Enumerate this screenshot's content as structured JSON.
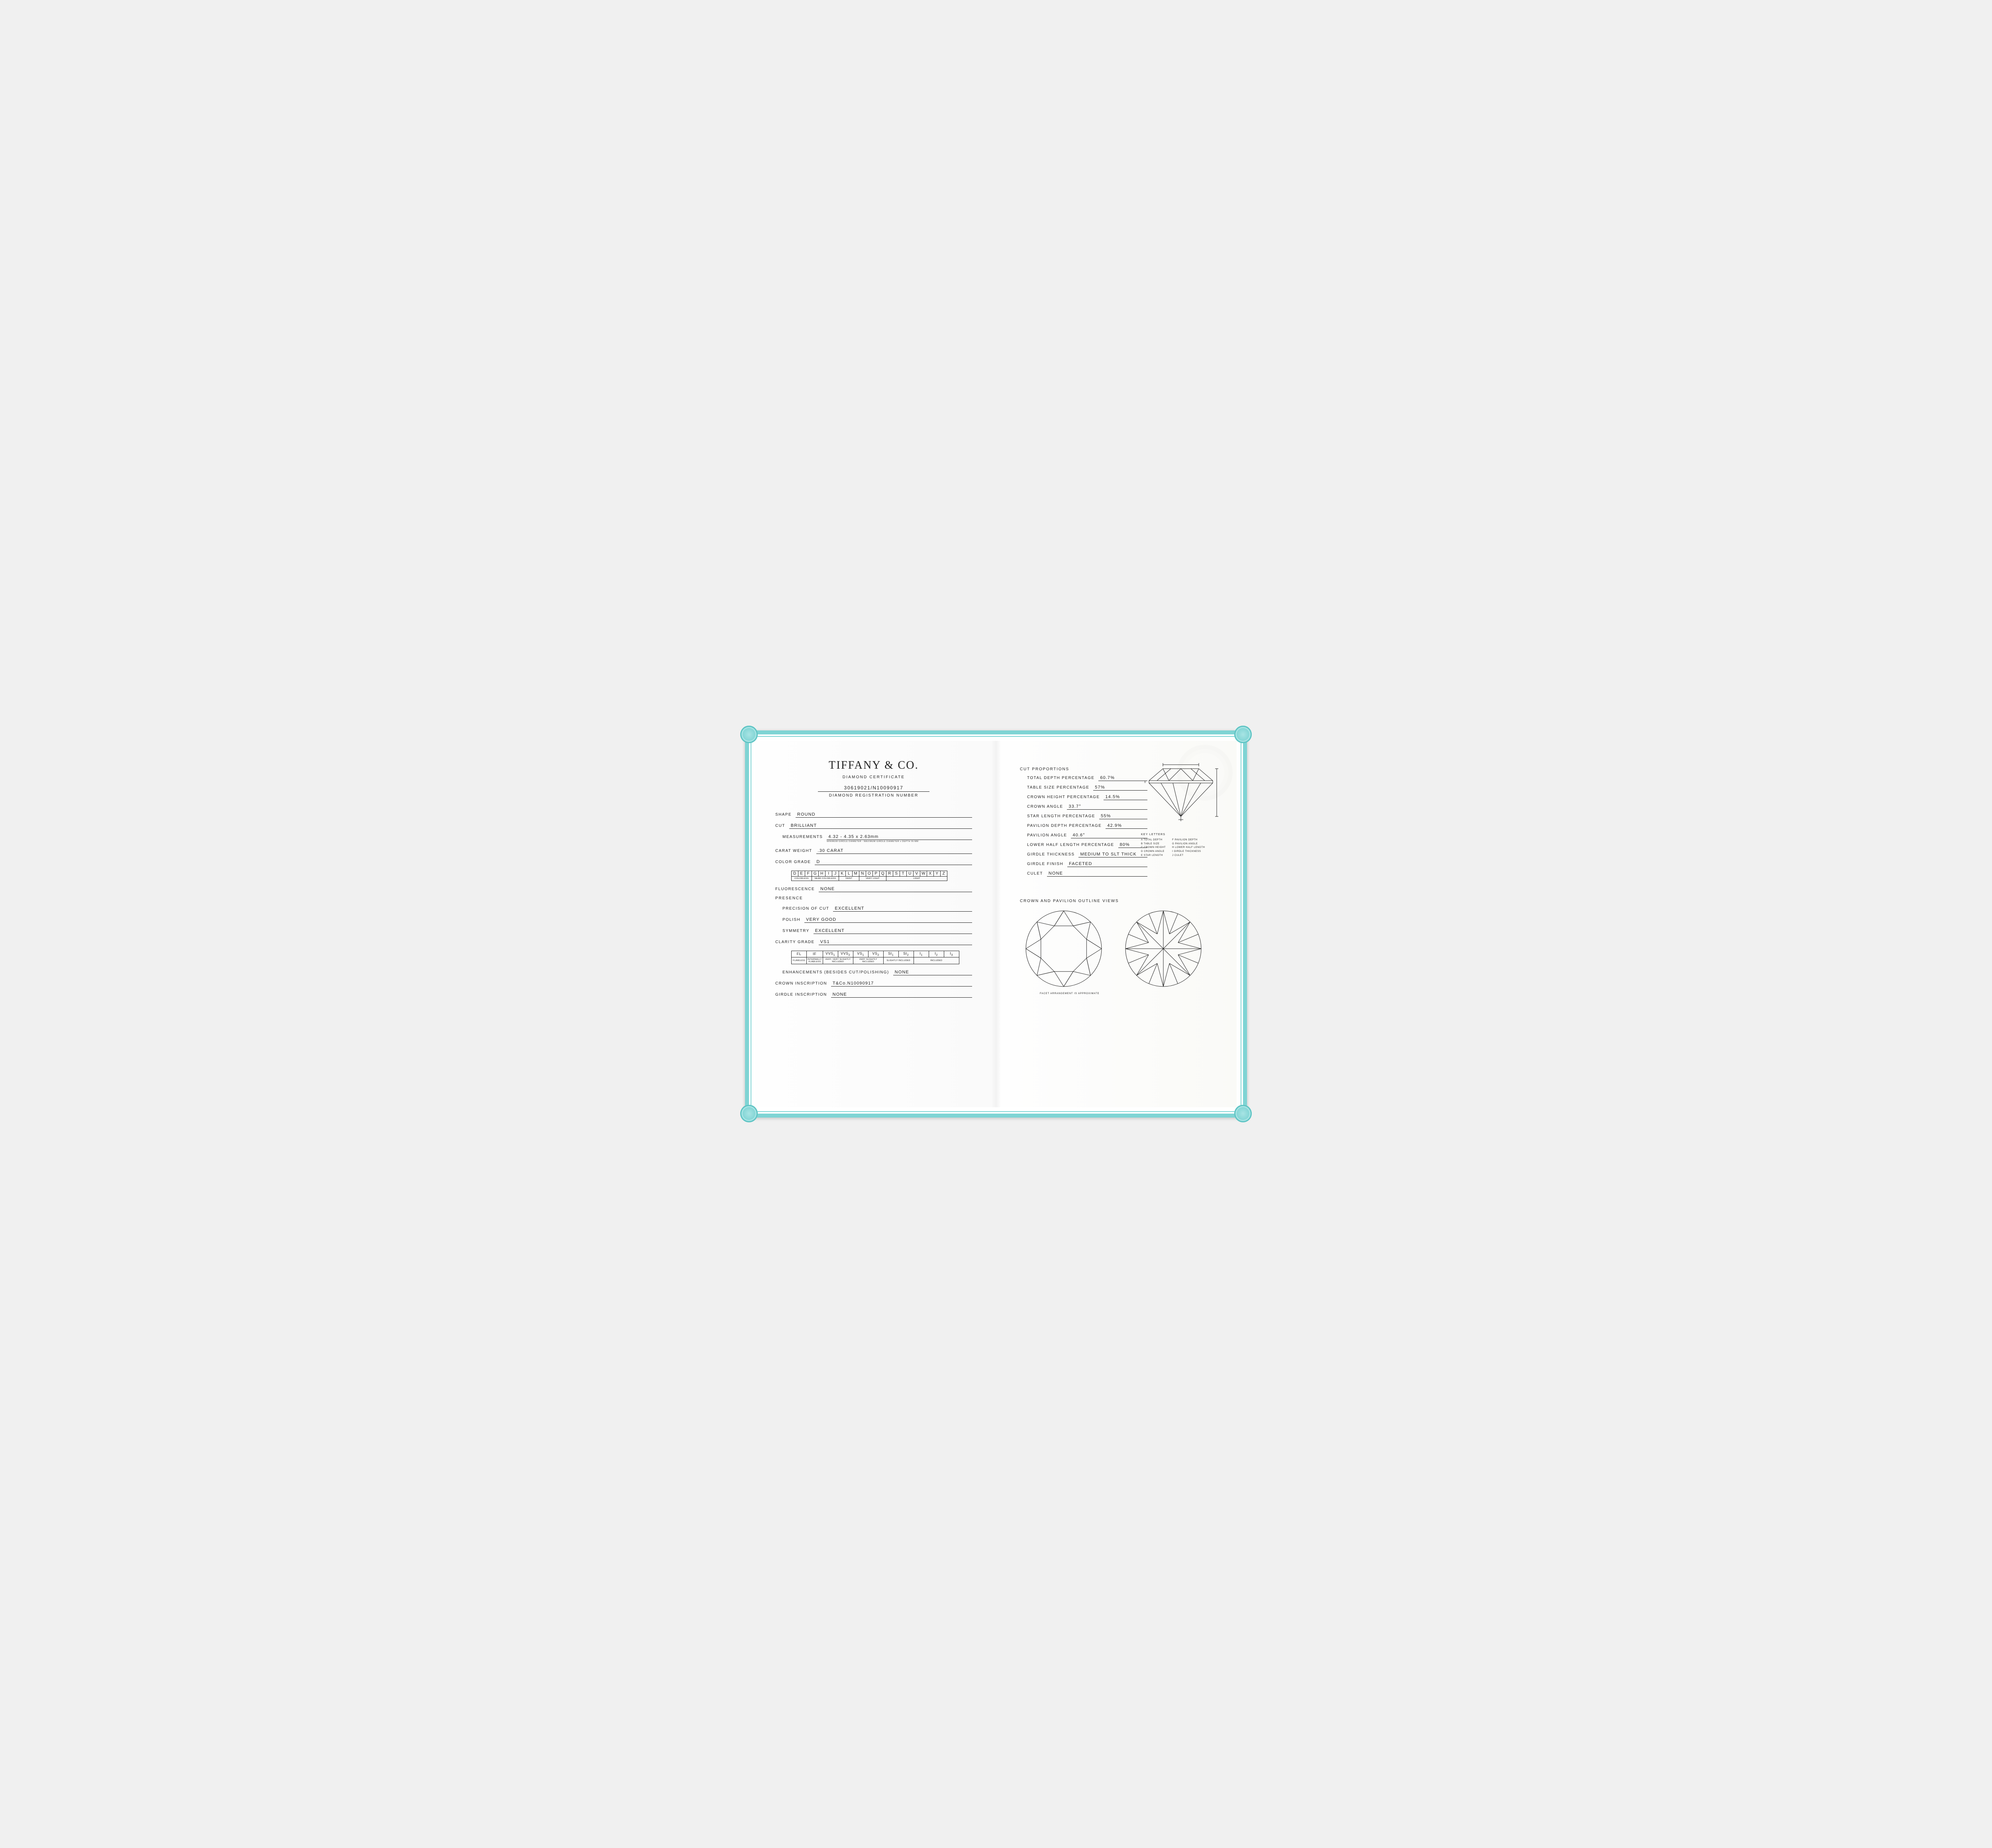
{
  "border_color": "#7fd4d4",
  "text_color": "#222222",
  "brand": "TIFFANY & CO.",
  "subtitle": "DIAMOND CERTIFICATE",
  "registration_number": "30619021/N10090917",
  "registration_label": "DIAMOND REGISTRATION NUMBER",
  "left": {
    "shape": {
      "label": "SHAPE",
      "value": "ROUND"
    },
    "cut": {
      "label": "CUT",
      "value": "BRILLIANT"
    },
    "measurements": {
      "label": "MEASUREMENTS",
      "value": "4.32 - 4.35 x 2.63mm",
      "note": "MINIMUM GIRDLE DIAMETER - MAXIMUM GIRDLE DIAMETER x DEPTH IN MM"
    },
    "carat": {
      "label": "CARAT WEIGHT",
      "value": ".30 CARAT"
    },
    "color_grade": {
      "label": "COLOR GRADE",
      "value": "D"
    },
    "color_scale": {
      "letters": [
        "D",
        "E",
        "F",
        "G",
        "H",
        "I",
        "J",
        "K",
        "L",
        "M",
        "N",
        "O",
        "P",
        "Q",
        "R",
        "S",
        "T",
        "U",
        "V",
        "W",
        "X",
        "Y",
        "Z"
      ],
      "groups": [
        {
          "label": "COLORLESS",
          "span": 3
        },
        {
          "label": "NEAR COLORLESS",
          "span": 4
        },
        {
          "label": "FAINT",
          "span": 3
        },
        {
          "label": "VERY LIGHT",
          "span": 4
        },
        {
          "label": "LIGHT",
          "span": 9
        }
      ]
    },
    "fluorescence": {
      "label": "FLUORESCENCE",
      "value": "NONE"
    },
    "presence": {
      "heading": "PRESENCE",
      "precision": {
        "label": "PRECISION OF CUT",
        "value": "EXCELLENT"
      },
      "polish": {
        "label": "POLISH",
        "value": "VERY GOOD"
      },
      "symmetry": {
        "label": "SYMMETRY",
        "value": "EXCELLENT"
      }
    },
    "clarity_grade": {
      "label": "CLARITY GRADE",
      "value": "VS1"
    },
    "clarity_scale": {
      "grades_html": [
        "FL",
        "IF",
        "VVS₁",
        "VVS₂",
        "VS₁",
        "VS₂",
        "SI₁",
        "SI₂",
        "I₁",
        "I₂",
        "I₃"
      ],
      "groups": [
        {
          "label": "FLAWLESS",
          "span": 1
        },
        {
          "label": "INTERNALLY FLAWLESS",
          "span": 1
        },
        {
          "label": "VERY, VERY SLIGHTLY INCLUDED",
          "span": 2
        },
        {
          "label": "VERY SLIGHTLY INCLUDED",
          "span": 2
        },
        {
          "label": "SLIGHTLY INCLUDED",
          "span": 2
        },
        {
          "label": "INCLUDED",
          "span": 3
        }
      ]
    },
    "enhancements": {
      "label": "ENHANCEMENTS (BESIDES CUT/POLISHING)",
      "value": "NONE"
    },
    "crown_inscription": {
      "label": "CROWN INSCRIPTION",
      "value": "T&Co.N10090917"
    },
    "girdle_inscription": {
      "label": "GIRDLE INSCRIPTION",
      "value": "NONE"
    }
  },
  "right": {
    "heading": "CUT PROPORTIONS",
    "rows": [
      {
        "label": "TOTAL DEPTH PERCENTAGE",
        "value": "60.7%"
      },
      {
        "label": "TABLE SIZE PERCENTAGE",
        "value": "57%"
      },
      {
        "label": "CROWN HEIGHT PERCENTAGE",
        "value": "14.5%"
      },
      {
        "label": "CROWN ANGLE",
        "value": "33.7°"
      },
      {
        "label": "STAR LENGTH PERCENTAGE",
        "value": "55%"
      },
      {
        "label": "PAVILION DEPTH PERCENTAGE",
        "value": "42.9%"
      },
      {
        "label": "PAVILION ANGLE",
        "value": "40.6°"
      },
      {
        "label": "LOWER HALF LENGTH PERCENTAGE",
        "value": "80%"
      },
      {
        "label": "GIRDLE THICKNESS",
        "value": "MEDIUM TO SLT THICK"
      },
      {
        "label": "GIRDLE FINISH",
        "value": "FACETED"
      },
      {
        "label": "CULET",
        "value": "NONE"
      }
    ],
    "key_heading": "KEY LETTERS",
    "key_left": [
      "A TOTAL DEPTH",
      "B TABLE SIZE",
      "C CROWN HEIGHT",
      "D CROWN ANGLE",
      "E STAR LENGTH"
    ],
    "key_right": [
      "F PAVILION DEPTH",
      "G PAVILION ANGLE",
      "H LOWER HALF LENGTH",
      "I GIRDLE THICKNESS",
      "J CULET"
    ],
    "views_heading": "CROWN AND PAVILION OUTLINE VIEWS",
    "footnote": "FACET ARRANGEMENT IS APPROXIMATE"
  }
}
